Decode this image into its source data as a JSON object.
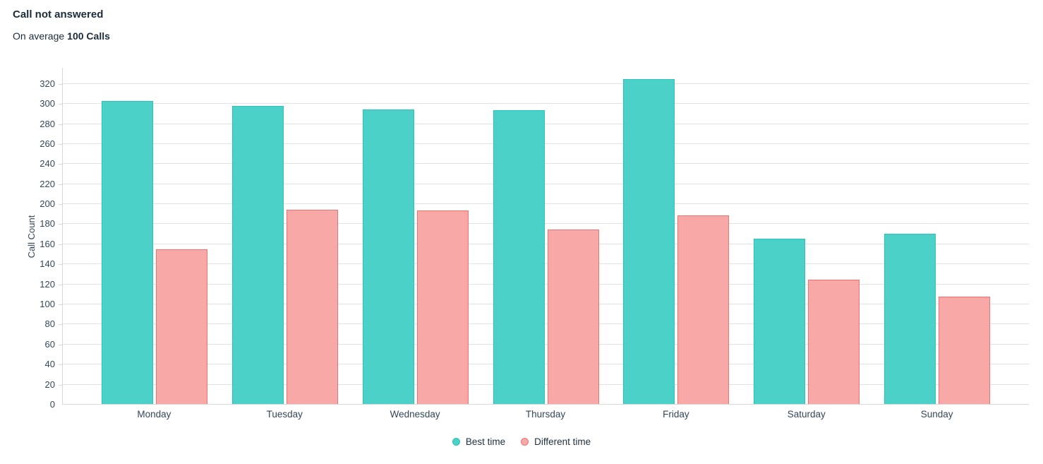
{
  "header": {
    "title": "Call not answered",
    "subtitle_prefix": "On average",
    "subtitle_bold": "100 Calls"
  },
  "chart_data": {
    "type": "bar",
    "title": "Call not answered",
    "subtitle": "On average 100 Calls",
    "categories": [
      "Monday",
      "Tuesday",
      "Wednesday",
      "Thursday",
      "Friday",
      "Saturday",
      "Sunday"
    ],
    "series": [
      {
        "name": "Best time",
        "color": "#4CD1C8",
        "border_color": "#29C5BB",
        "values": [
          302,
          297,
          294,
          293,
          324,
          165,
          170
        ]
      },
      {
        "name": "Different time",
        "color": "#F9A8A8",
        "border_color": "#F3716F",
        "values": [
          154,
          194,
          193,
          174,
          188,
          124,
          107
        ]
      }
    ],
    "xlabel": "",
    "ylabel": "Call Count",
    "ylim": [
      0,
      336
    ],
    "y_ticks": [
      0,
      20,
      40,
      60,
      80,
      100,
      120,
      140,
      160,
      180,
      200,
      220,
      240,
      260,
      280,
      300,
      320
    ],
    "grid": "horizontal",
    "legend_position": "bottom-center"
  },
  "colors": {
    "grid": "#e2e2e2",
    "axis": "#d8d8d8",
    "title_text": "#1c2b3a",
    "tick_text": "#33475b"
  }
}
